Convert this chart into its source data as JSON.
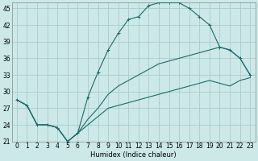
{
  "xlabel": "Humidex (Indice chaleur)",
  "background_color": "#cce8e8",
  "grid_color": "#aacccc",
  "line_color": "#1a6b6b",
  "xlim": [
    -0.5,
    23.5
  ],
  "ylim": [
    21,
    46
  ],
  "yticks": [
    21,
    24,
    27,
    30,
    33,
    36,
    39,
    42,
    45
  ],
  "xticks": [
    0,
    1,
    2,
    3,
    4,
    5,
    6,
    7,
    8,
    9,
    10,
    11,
    12,
    13,
    14,
    15,
    16,
    17,
    18,
    19,
    20,
    21,
    22,
    23
  ],
  "curve1_x": [
    0,
    1,
    2,
    3,
    4,
    5,
    6,
    7,
    8,
    9,
    10,
    11,
    12,
    13,
    14,
    15,
    16,
    17,
    18,
    19,
    20,
    21,
    22,
    23
  ],
  "curve1_y": [
    28.5,
    27.5,
    24.0,
    24.0,
    23.5,
    21.0,
    22.5,
    29.0,
    33.5,
    37.5,
    40.5,
    43.0,
    43.5,
    45.5,
    46.0,
    46.0,
    46.0,
    45.0,
    43.5,
    42.0,
    38.0,
    37.5,
    36.0,
    33.0
  ],
  "curve2_x": [
    0,
    1,
    2,
    3,
    4,
    5,
    6,
    7,
    8,
    9,
    10,
    11,
    12,
    13,
    14,
    15,
    16,
    17,
    18,
    19,
    20,
    21,
    22,
    23
  ],
  "curve2_y": [
    28.5,
    27.5,
    24.0,
    24.0,
    23.5,
    21.0,
    22.5,
    24.0,
    25.5,
    27.0,
    27.5,
    28.0,
    28.5,
    29.0,
    29.5,
    30.0,
    30.5,
    31.0,
    31.5,
    32.0,
    31.5,
    31.0,
    32.0,
    32.5
  ],
  "curve3_x": [
    0,
    1,
    2,
    3,
    4,
    5,
    6,
    7,
    8,
    9,
    10,
    11,
    12,
    13,
    14,
    15,
    16,
    17,
    18,
    19,
    20,
    21,
    22,
    23
  ],
  "curve3_y": [
    28.5,
    27.5,
    24.0,
    24.0,
    23.5,
    21.0,
    22.5,
    25.0,
    27.0,
    29.5,
    31.0,
    32.0,
    33.0,
    34.0,
    35.0,
    35.5,
    36.0,
    36.5,
    37.0,
    37.5,
    38.0,
    37.5,
    36.0,
    33.0
  ],
  "tick_fontsize": 5.5,
  "xlabel_fontsize": 6.0
}
